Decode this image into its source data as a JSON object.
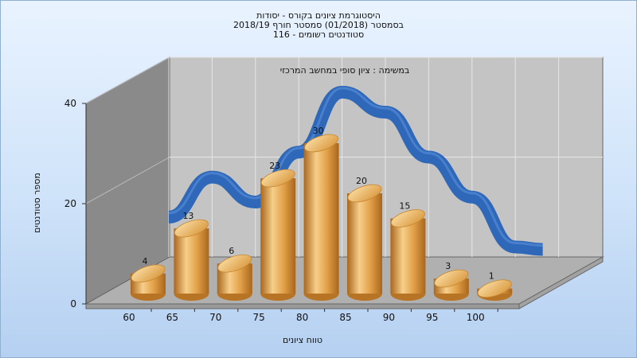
{
  "chart_data": {
    "type": "bar",
    "title_lines": [
      "היסטוגרמת ציונים בקורס - יסודות",
      "בסמסטר  (01/2018)  סמסטר חורף 2018/19",
      "סטודנטים רשומים - 116"
    ],
    "inner_label": "במשימה : ציון סופי במחשב המרכזי",
    "categories": [
      "60",
      "65",
      "70",
      "75",
      "80",
      "85",
      "90",
      "95",
      "100"
    ],
    "values": [
      4,
      13,
      6,
      23,
      30,
      20,
      15,
      3,
      1
    ],
    "trend_line": [
      8,
      16,
      11,
      21,
      33,
      29,
      20,
      12,
      2
    ],
    "xlabel": "טווח ציונים",
    "ylabel": "מספר סטודנטים",
    "yticks": [
      0,
      20,
      40
    ],
    "ylim": [
      0,
      40
    ],
    "grid": true,
    "colors": {
      "bar": "#e0a64d",
      "trend": "#2f68b8",
      "back_wall": "#c4c4c4",
      "side_wall": "#8a8a8a",
      "floor": "#b0b0b0"
    }
  }
}
